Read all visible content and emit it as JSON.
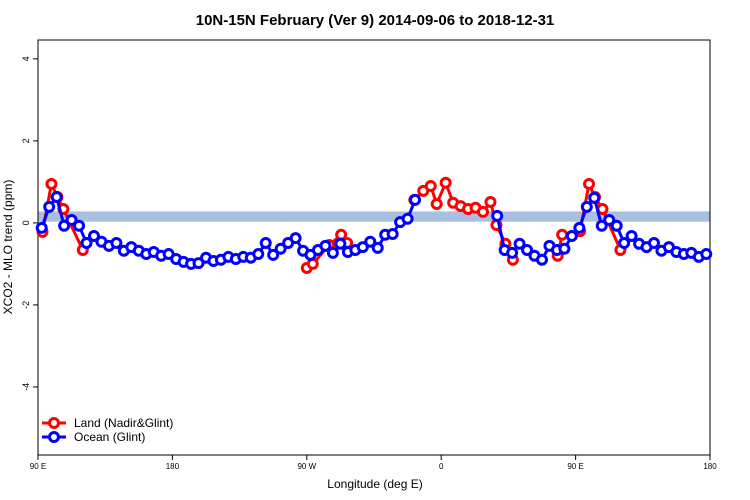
{
  "chart_data": {
    "type": "line",
    "title": "10N-15N February (Ver 9)   2014-09-06 to 2018-12-31",
    "x_label": "Longitude (deg E)",
    "y_label": "XCO2 - MLO trend (ppm)",
    "xlim": [
      90,
      540
    ],
    "xticks": [
      {
        "value": 90,
        "label": "90 E"
      },
      180,
      {
        "value": 270,
        "label": "90 W"
      },
      {
        "value": 360,
        "label": "0"
      },
      {
        "value": 450,
        "label": "90 E"
      },
      {
        "value": 540,
        "label": "180"
      }
    ],
    "ylim": [
      -5.66,
      4.46
    ],
    "yticks": [
      -4,
      -2,
      0,
      2,
      4
    ],
    "reference_band": [
      0.03,
      0.28
    ],
    "reference_band_color": "#a8bfe0",
    "legend": "bottom-left",
    "series": [
      {
        "name": "Land (Nadir&Glint)",
        "color": "#ff0000",
        "x": [
          93,
          99,
          103,
          107,
          120,
          200,
          270,
          274,
          285,
          293,
          297,
          320,
          342,
          348,
          353,
          357,
          363,
          368,
          373,
          378,
          383,
          388,
          393,
          397,
          403,
          408,
          420,
          438,
          441,
          453,
          459,
          463,
          468,
          480
        ],
        "values": [
          -0.22,
          0.95,
          0.63,
          0.34,
          -0.66,
          null,
          -1.1,
          -1.0,
          -0.54,
          -0.29,
          -0.49,
          null,
          0.56,
          0.78,
          0.9,
          0.46,
          0.98,
          0.49,
          0.41,
          0.34,
          0.37,
          0.27,
          0.51,
          -0.05,
          -0.51,
          -0.9,
          null,
          -0.8,
          -0.29,
          -0.2,
          0.95,
          0.63,
          0.34,
          -0.66
        ]
      },
      {
        "name": "Ocean (Glint)",
        "color": "#0000ff",
        "x": [
          92.5,
          97.5,
          102.5,
          107.5,
          112.5,
          117.5,
          122.5,
          127.5,
          132.5,
          137.5,
          142.5,
          147.5,
          152.5,
          157.5,
          162.5,
          167.5,
          172.5,
          177.5,
          182.5,
          187.5,
          192.5,
          197.5,
          202.5,
          207.5,
          212.5,
          217.5,
          222.5,
          227.5,
          232.5,
          237.5,
          242.5,
          247.5,
          252.5,
          257.5,
          262.5,
          267.5,
          272.5,
          277.5,
          282.5,
          287.5,
          292.5,
          297.5,
          302.5,
          307.5,
          312.5,
          317.5,
          322.5,
          327.5,
          332.5,
          337.5,
          342.5,
          370,
          397.5,
          402.5,
          407.5,
          412.5,
          417.5,
          422.5,
          427.5,
          432.5,
          437.5,
          442.5,
          447.5,
          452.5,
          457.5,
          462.5,
          467.5,
          472.5,
          477.5,
          482.5,
          487.5,
          492.5,
          497.5,
          502.5,
          507.5,
          512.5,
          517.5,
          522.5,
          527.5,
          532.5,
          537.5
        ],
        "values": [
          -0.12,
          0.39,
          0.63,
          -0.07,
          0.07,
          -0.07,
          -0.49,
          -0.32,
          -0.46,
          -0.56,
          -0.49,
          -0.68,
          -0.59,
          -0.68,
          -0.76,
          -0.71,
          -0.8,
          -0.76,
          -0.88,
          -0.95,
          -1.0,
          -0.98,
          -0.85,
          -0.93,
          -0.9,
          -0.83,
          -0.88,
          -0.83,
          -0.85,
          -0.76,
          -0.49,
          -0.78,
          -0.63,
          -0.49,
          -0.37,
          -0.68,
          -0.78,
          -0.66,
          -0.56,
          -0.73,
          -0.51,
          -0.71,
          -0.66,
          -0.59,
          -0.46,
          -0.61,
          -0.29,
          -0.27,
          0.02,
          0.1,
          0.56,
          null,
          0.17,
          -0.66,
          -0.73,
          -0.51,
          -0.66,
          -0.8,
          -0.9,
          -0.56,
          -0.66,
          -0.63,
          -0.32,
          -0.12,
          0.39,
          0.61,
          -0.07,
          0.07,
          -0.07,
          -0.49,
          -0.32,
          -0.51,
          -0.59,
          -0.49,
          -0.68,
          -0.59,
          -0.71,
          -0.76,
          -0.73,
          -0.83,
          -0.76
        ]
      }
    ]
  }
}
